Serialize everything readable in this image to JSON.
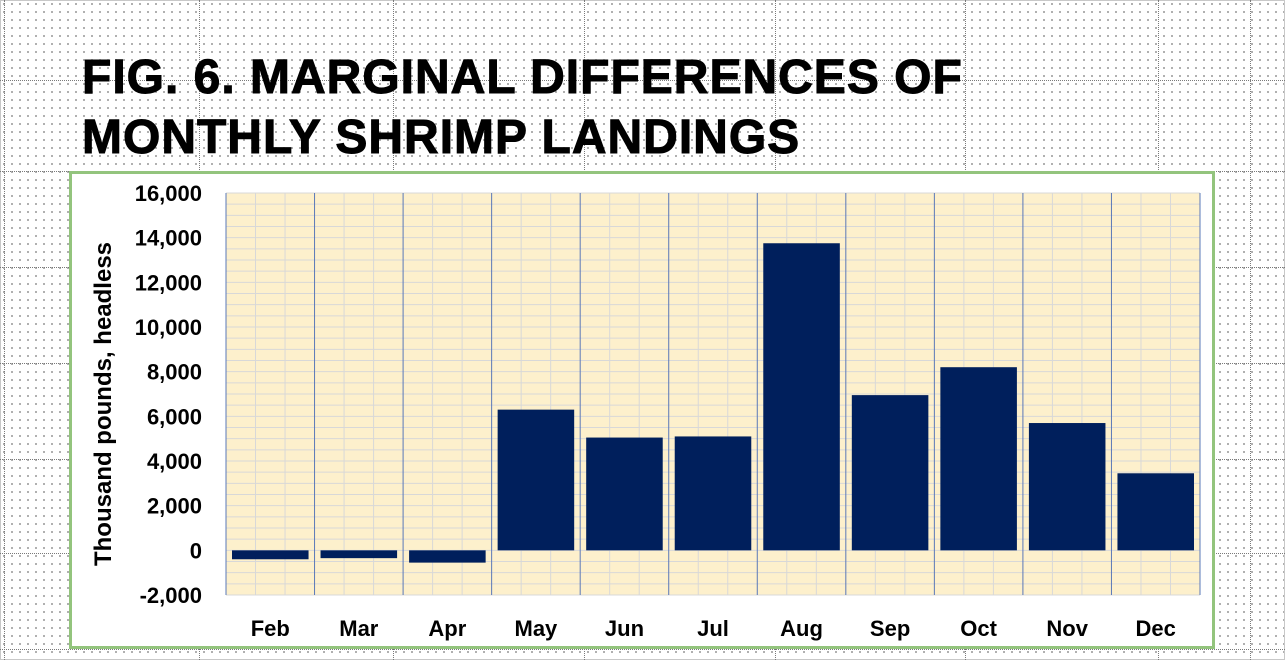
{
  "title": "FIG. 6. MARGINAL DIFFERENCES OF\nMONTHLY SHRIMP LANDINGS",
  "colors": {
    "plot_background": "#fdf0cc",
    "bar": "#001f5c",
    "chart_border": "#93c47d",
    "grid_minor": "#d8d8d8",
    "category_divider": "#5a78b8"
  },
  "chart_data": {
    "type": "bar",
    "title": "FIG. 6. MARGINAL DIFFERENCES OF MONTHLY SHRIMP LANDINGS",
    "xlabel": "",
    "ylabel": "Thousand pounds, headless",
    "categories": [
      "Feb",
      "Mar",
      "Apr",
      "May",
      "Jun",
      "Jul",
      "Aug",
      "Sep",
      "Oct",
      "Nov",
      "Dec"
    ],
    "values": [
      -400,
      -350,
      -550,
      6300,
      5050,
      5100,
      13750,
      6950,
      8200,
      5700,
      3450
    ],
    "ylim": [
      -2000,
      16000
    ],
    "yticks": [
      -2000,
      0,
      2000,
      4000,
      6000,
      8000,
      10000,
      12000,
      14000,
      16000
    ],
    "ytick_labels": [
      "-2,000",
      "0",
      "2,000",
      "4,000",
      "6,000",
      "8,000",
      "10,000",
      "12,000",
      "14,000",
      "16,000"
    ],
    "grid": true,
    "legend": "none"
  }
}
